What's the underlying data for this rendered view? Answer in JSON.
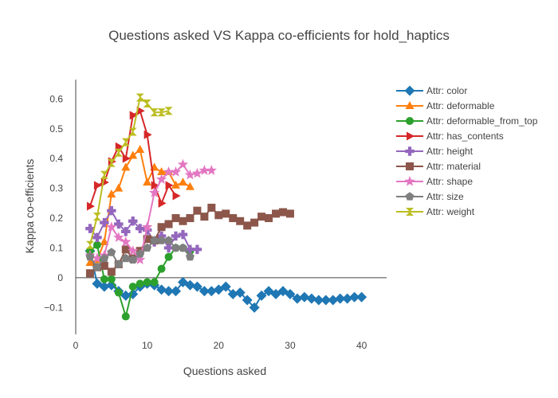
{
  "chart_data": {
    "type": "line",
    "title": "Questions asked VS Kappa co-efficients for hold_haptics",
    "xlabel": "Questions asked",
    "ylabel": "Kappa co-efficients",
    "xlim": [
      0,
      43.5
    ],
    "ylim": [
      -0.19,
      0.665
    ],
    "xticks": [
      0,
      10,
      20,
      30,
      40
    ],
    "yticks": [
      -0.1,
      0,
      0.1,
      0.2,
      0.3,
      0.4,
      0.5,
      0.6
    ],
    "ytick_labels": [
      "−0.1",
      "0",
      "0.1",
      "0.2",
      "0.3",
      "0.4",
      "0.5",
      "0.6"
    ],
    "grid": false,
    "legend_position": "right",
    "series": [
      {
        "name": "Attr: color",
        "color": "#1f77b4",
        "marker": "diamond",
        "x": [
          2,
          3,
          4,
          5,
          6,
          7,
          8,
          9,
          10,
          11,
          12,
          13,
          14,
          15,
          16,
          17,
          18,
          19,
          20,
          21,
          22,
          23,
          24,
          25,
          26,
          27,
          28,
          29,
          30,
          31,
          32,
          33,
          34,
          35,
          36,
          37,
          38,
          39,
          40
        ],
        "y": [
          0.09,
          -0.02,
          -0.03,
          -0.025,
          -0.045,
          -0.06,
          -0.055,
          -0.03,
          -0.02,
          -0.025,
          -0.04,
          -0.045,
          -0.045,
          -0.015,
          -0.025,
          -0.03,
          -0.045,
          -0.045,
          -0.04,
          -0.03,
          -0.055,
          -0.05,
          -0.075,
          -0.1,
          -0.06,
          -0.045,
          -0.055,
          -0.045,
          -0.055,
          -0.07,
          -0.065,
          -0.07,
          -0.075,
          -0.075,
          -0.075,
          -0.07,
          -0.07,
          -0.065,
          -0.065
        ]
      },
      {
        "name": "Attr: deformable",
        "color": "#ff7f0e",
        "marker": "triangle-up",
        "x": [
          2,
          3,
          4,
          5,
          6,
          7,
          8,
          9,
          10,
          11,
          12,
          13,
          14,
          15,
          16
        ],
        "y": [
          0.05,
          0.06,
          0.12,
          0.28,
          0.3,
          0.37,
          0.41,
          0.43,
          0.32,
          0.37,
          0.355,
          0.355,
          0.31,
          0.32,
          0.305
        ]
      },
      {
        "name": "Attr: deformable_from_top",
        "color": "#2ca02c",
        "marker": "circle",
        "x": [
          2,
          3,
          4,
          5,
          6,
          7,
          8,
          9,
          10,
          11,
          12,
          13,
          14,
          15,
          16
        ],
        "y": [
          0.09,
          0.11,
          -0.005,
          -0.005,
          -0.05,
          -0.13,
          -0.03,
          -0.02,
          -0.015,
          -0.015,
          0.03,
          0.07,
          0.1,
          0.1,
          0.09
        ]
      },
      {
        "name": "Attr: has_contents",
        "color": "#d62728",
        "marker": "triangle-right",
        "x": [
          2,
          3,
          4,
          5,
          6,
          7,
          8,
          9,
          10,
          11,
          12,
          13,
          14
        ],
        "y": [
          0.24,
          0.31,
          0.32,
          0.39,
          0.44,
          0.4,
          0.545,
          0.56,
          0.48,
          0.31,
          0.25,
          0.31,
          0.275
        ]
      },
      {
        "name": "Attr: height",
        "color": "#9467bd",
        "marker": "cross",
        "x": [
          2,
          3,
          4,
          5,
          6,
          7,
          8,
          9,
          10,
          11,
          12,
          13,
          14,
          15,
          16,
          17
        ],
        "y": [
          0.165,
          0.135,
          0.185,
          0.225,
          0.18,
          0.155,
          0.19,
          0.165,
          0.16,
          0.12,
          0.14,
          0.1,
          0.14,
          0.145,
          0.095,
          0.095
        ]
      },
      {
        "name": "Attr: material",
        "color": "#8c564b",
        "marker": "square",
        "x": [
          2,
          3,
          4,
          5,
          6,
          7,
          8,
          9,
          10,
          11,
          12,
          13,
          14,
          15,
          16,
          17,
          18,
          19,
          20,
          21,
          22,
          23,
          24,
          25,
          26,
          27,
          28,
          29,
          30
        ],
        "y": [
          0.015,
          0.035,
          0.04,
          0.02,
          0.045,
          0.095,
          0.065,
          0.09,
          0.13,
          0.125,
          0.17,
          0.18,
          0.2,
          0.19,
          0.2,
          0.225,
          0.205,
          0.235,
          0.21,
          0.215,
          0.2,
          0.19,
          0.175,
          0.185,
          0.205,
          0.2,
          0.215,
          0.22,
          0.215
        ]
      },
      {
        "name": "Attr: shape",
        "color": "#e377c2",
        "marker": "star",
        "x": [
          2,
          3,
          4,
          5,
          6,
          7,
          8,
          9,
          10,
          11,
          12,
          13,
          14,
          15,
          16,
          17,
          18,
          19
        ],
        "y": [
          0.075,
          0.065,
          0.075,
          0.17,
          0.135,
          0.12,
          0.09,
          0.06,
          0.17,
          0.285,
          0.33,
          0.355,
          0.355,
          0.38,
          0.345,
          0.35,
          0.36,
          0.36
        ]
      },
      {
        "name": "Attr: size",
        "color": "#7f7f7f",
        "marker": "pentagon",
        "x": [
          2,
          3,
          4,
          5,
          6,
          7,
          8,
          9,
          10,
          11,
          12,
          13,
          14,
          15,
          16
        ],
        "y": [
          0.07,
          0.035,
          0.065,
          0.085,
          0.045,
          0.065,
          0.06,
          0.08,
          0.1,
          0.125,
          0.125,
          0.125,
          0.1,
          0.1,
          0.07
        ]
      },
      {
        "name": "Attr: weight",
        "color": "#bcbd22",
        "marker": "hourglass",
        "x": [
          2,
          3,
          4,
          5,
          6,
          7,
          8,
          9,
          10,
          11,
          12,
          13
        ],
        "y": [
          0.11,
          0.205,
          0.345,
          0.385,
          0.42,
          0.455,
          0.49,
          0.605,
          0.585,
          0.555,
          0.555,
          0.56
        ]
      }
    ]
  }
}
